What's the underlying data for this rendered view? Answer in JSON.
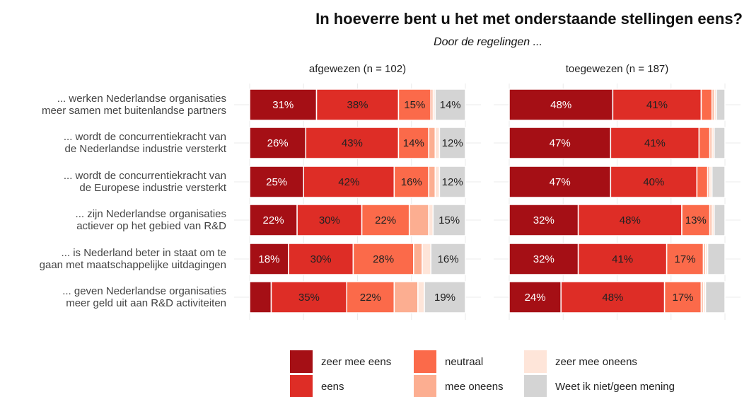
{
  "chart_data": {
    "type": "stacked-barh",
    "title": "In hoeverre bent u het met onderstaande stellingen eens?",
    "subtitle": "Door de regelingen ...",
    "categories": [
      "... werken Nederlandse organisaties\nmeer samen met buitenlandse partners",
      "... wordt de concurrentiekracht van\nde Nederlandse industrie versterkt",
      "... wordt de concurrentiekracht van\nde Europese industrie versterkt",
      "... zijn Nederlandse organisaties\nactiever op het gebied van R&D",
      "... is Nederland beter in staat om te\ngaan met maatschappelijke uitdagingen",
      "... geven Nederlandse organisaties\nmeer geld uit aan R&D activiteiten"
    ],
    "series": [
      {
        "name": "zeer mee eens",
        "color": "#a50f15",
        "label_color": "#ffffff"
      },
      {
        "name": "eens",
        "color": "#de2d26",
        "label_color": "#222222"
      },
      {
        "name": "neutraal",
        "color": "#fb6a4a",
        "label_color": "#222222"
      },
      {
        "name": "mee oneens",
        "color": "#fcae91",
        "label_color": "#222222"
      },
      {
        "name": "zeer mee oneens",
        "color": "#fee5d9",
        "label_color": "#222222"
      },
      {
        "name": "Weet ik niet/geen mening",
        "color": "#d4d4d4",
        "label_color": "#222222"
      }
    ],
    "xlim": [
      0,
      100
    ],
    "xticks": [
      0,
      25,
      50,
      75,
      100
    ],
    "grid": true,
    "panels": [
      {
        "title": "afgewezen (n = 102)",
        "series": [
          {
            "values": [
              31,
              26,
              25,
              22,
              18,
              10
            ],
            "value_labels": [
              "31%",
              "26%",
              "25%",
              "22%",
              "18%",
              null
            ]
          },
          {
            "values": [
              38,
              43,
              42,
              30,
              30,
              35
            ],
            "value_labels": [
              "38%",
              "43%",
              "42%",
              "30%",
              "30%",
              "35%"
            ]
          },
          {
            "values": [
              15,
              14,
              16,
              22,
              28,
              22
            ],
            "value_labels": [
              "15%",
              "14%",
              "16%",
              "22%",
              "28%",
              "22%"
            ]
          },
          {
            "values": [
              1,
              3,
              3,
              9,
              4,
              11
            ],
            "value_labels": [
              null,
              null,
              null,
              null,
              null,
              null
            ]
          },
          {
            "values": [
              1,
              2,
              2,
              2,
              4,
              3
            ],
            "value_labels": [
              null,
              null,
              null,
              null,
              null,
              null
            ]
          },
          {
            "values": [
              14,
              12,
              12,
              15,
              16,
              19
            ],
            "value_labels": [
              "14%",
              "12%",
              "12%",
              "15%",
              "16%",
              "19%"
            ]
          }
        ]
      },
      {
        "title": "toegewezen (n = 187)",
        "series": [
          {
            "values": [
              48,
              47,
              47,
              32,
              32,
              24
            ],
            "value_labels": [
              "48%",
              "47%",
              "47%",
              "32%",
              "32%",
              "24%"
            ]
          },
          {
            "values": [
              41,
              41,
              40,
              48,
              41,
              48
            ],
            "value_labels": [
              "41%",
              "41%",
              "40%",
              "48%",
              "41%",
              "48%"
            ]
          },
          {
            "values": [
              5,
              5,
              5,
              13,
              17,
              17
            ],
            "value_labels": [
              null,
              null,
              null,
              "13%",
              "17%",
              "17%"
            ]
          },
          {
            "values": [
              1,
              1,
              1,
              1,
              1,
              1
            ],
            "value_labels": [
              null,
              null,
              null,
              null,
              null,
              null
            ]
          },
          {
            "values": [
              1,
              1,
              1,
              1,
              1,
              1
            ],
            "value_labels": [
              null,
              null,
              null,
              null,
              null,
              null
            ]
          },
          {
            "values": [
              4,
              5,
              6,
              5,
              8,
              9
            ],
            "value_labels": [
              null,
              null,
              null,
              null,
              null,
              null
            ]
          }
        ]
      }
    ]
  }
}
